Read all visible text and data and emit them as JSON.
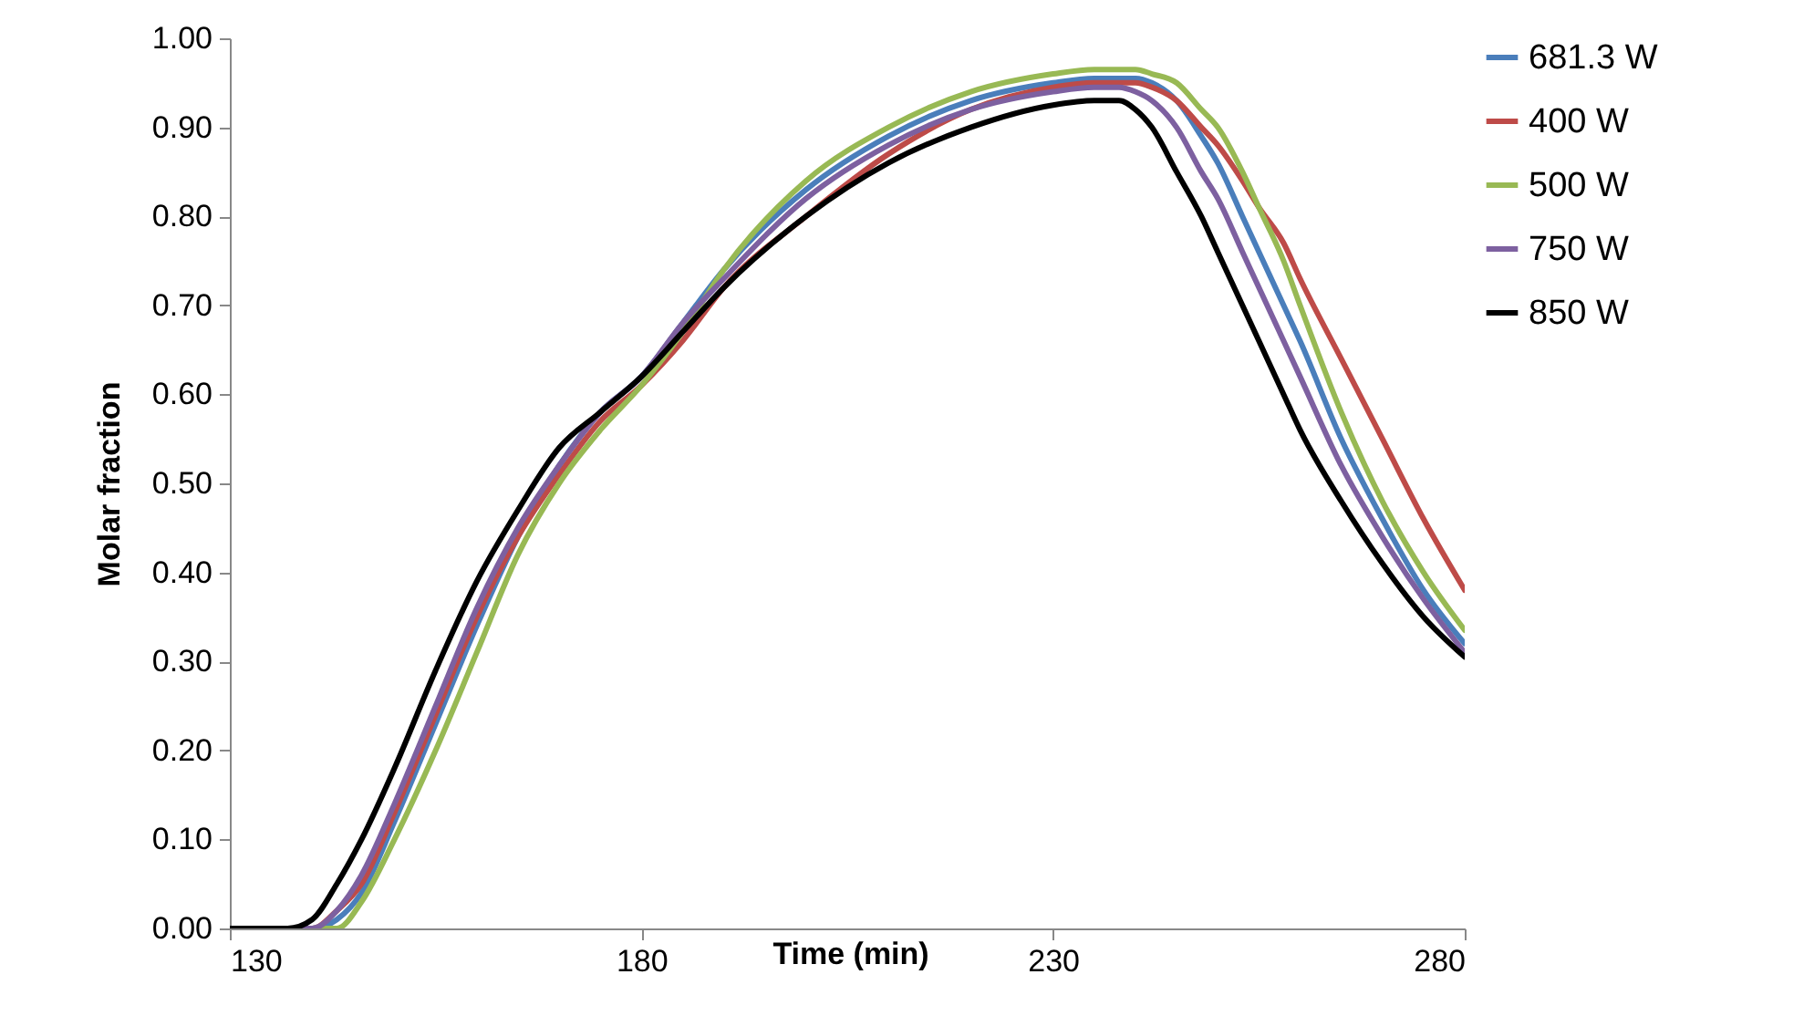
{
  "chart_data": {
    "type": "line",
    "xlabel": "Time (min)",
    "ylabel": "Molar fraction",
    "x": [
      130,
      137,
      140,
      143,
      146,
      150,
      155,
      160,
      165,
      170,
      175,
      180,
      185,
      190,
      200,
      210,
      220,
      230,
      235,
      238,
      240,
      242,
      245,
      248,
      250,
      253,
      255,
      258,
      260,
      265,
      270,
      275,
      280
    ],
    "xlim": [
      130,
      280
    ],
    "xticks": [
      130,
      180,
      230,
      280
    ],
    "ylim": [
      0,
      1
    ],
    "yticks": [
      {
        "value": 0,
        "label": "0.00"
      },
      {
        "value": 0.1,
        "label": "0.10"
      },
      {
        "value": 0.2,
        "label": "0.20"
      },
      {
        "value": 0.3,
        "label": "0.30"
      },
      {
        "value": 0.4,
        "label": "0.40"
      },
      {
        "value": 0.5,
        "label": "0.50"
      },
      {
        "value": 0.6,
        "label": "0.60"
      },
      {
        "value": 0.7,
        "label": "0.70"
      },
      {
        "value": 0.8,
        "label": "0.80"
      },
      {
        "value": 0.9,
        "label": "0.90"
      },
      {
        "value": 1,
        "label": "1.00"
      }
    ],
    "grid": false,
    "legend": "right",
    "marker": "none",
    "line_style": "solid",
    "series": [
      {
        "name": "681.3 W",
        "color": "#4a7ebb",
        "values": [
          0,
          0,
          0,
          0.01,
          0.04,
          0.12,
          0.23,
          0.34,
          0.44,
          0.52,
          0.58,
          0.62,
          0.68,
          0.74,
          0.83,
          0.89,
          0.93,
          0.95,
          0.955,
          0.955,
          0.955,
          0.95,
          0.93,
          0.89,
          0.86,
          0.8,
          0.76,
          0.7,
          0.66,
          0.55,
          0.46,
          0.38,
          0.32
        ]
      },
      {
        "name": "400 W",
        "color": "#be4b48",
        "values": [
          0,
          0,
          0,
          0.02,
          0.05,
          0.13,
          0.24,
          0.35,
          0.44,
          0.51,
          0.57,
          0.61,
          0.66,
          0.72,
          0.8,
          0.87,
          0.92,
          0.945,
          0.95,
          0.95,
          0.95,
          0.945,
          0.93,
          0.9,
          0.88,
          0.84,
          0.81,
          0.77,
          0.73,
          0.64,
          0.55,
          0.46,
          0.38
        ]
      },
      {
        "name": "500 W",
        "color": "#98b954",
        "values": [
          0,
          0,
          0,
          0,
          0.03,
          0.1,
          0.2,
          0.31,
          0.42,
          0.5,
          0.56,
          0.61,
          0.67,
          0.74,
          0.84,
          0.9,
          0.94,
          0.96,
          0.965,
          0.965,
          0.965,
          0.96,
          0.95,
          0.92,
          0.9,
          0.85,
          0.81,
          0.75,
          0.7,
          0.58,
          0.48,
          0.4,
          0.335
        ]
      },
      {
        "name": "750 W",
        "color": "#7d60a0",
        "values": [
          0,
          0,
          0,
          0.02,
          0.06,
          0.14,
          0.25,
          0.36,
          0.45,
          0.52,
          0.58,
          0.62,
          0.68,
          0.73,
          0.82,
          0.88,
          0.92,
          0.94,
          0.945,
          0.945,
          0.94,
          0.93,
          0.9,
          0.85,
          0.82,
          0.76,
          0.72,
          0.66,
          0.62,
          0.52,
          0.44,
          0.37,
          0.31
        ]
      },
      {
        "name": "850 W",
        "color": "#000000",
        "values": [
          0,
          0,
          0.01,
          0.05,
          0.1,
          0.18,
          0.29,
          0.39,
          0.47,
          0.54,
          0.58,
          0.62,
          0.67,
          0.72,
          0.8,
          0.86,
          0.9,
          0.925,
          0.93,
          0.93,
          0.92,
          0.9,
          0.85,
          0.8,
          0.76,
          0.7,
          0.66,
          0.6,
          0.56,
          0.48,
          0.41,
          0.35,
          0.305
        ]
      }
    ]
  }
}
